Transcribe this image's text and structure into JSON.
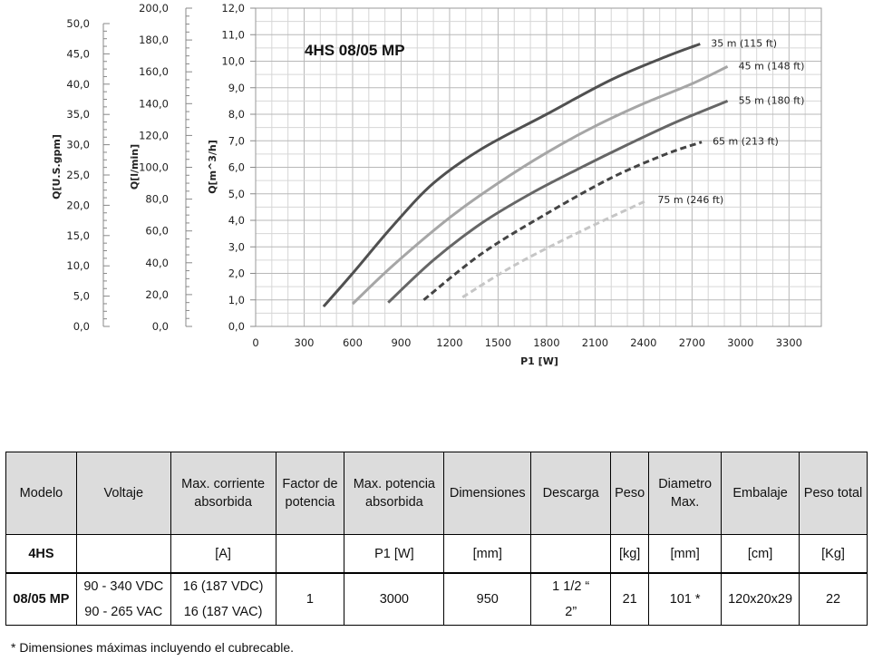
{
  "chart_data": {
    "type": "line",
    "title": "4HS 08/05 MP",
    "xlabel": "P1 [W]",
    "x_ticks": [
      "0",
      "300",
      "600",
      "900",
      "1200",
      "1500",
      "1800",
      "2100",
      "2400",
      "2700",
      "3000",
      "3300"
    ],
    "xlim": [
      0,
      3500
    ],
    "ylabel": "Q[m^3/h]",
    "ylim": [
      0,
      12
    ],
    "y_ticks": [
      "0,0",
      "1,0",
      "2,0",
      "3,0",
      "4,0",
      "5,0",
      "6,0",
      "7,0",
      "8,0",
      "9,0",
      "10,0",
      "11,0",
      "12,0"
    ],
    "secondary_axes": [
      {
        "label": "Q[l/min]",
        "ticks": [
          "0,0",
          "20,0",
          "40,0",
          "60,0",
          "80,0",
          "100,0",
          "120,0",
          "140,0",
          "160,0",
          "180,0",
          "200,0"
        ]
      },
      {
        "label": "Q[U.S.gpm]",
        "ticks": [
          "0,0",
          "5,0",
          "10,0",
          "15,0",
          "20,0",
          "25,0",
          "30,0",
          "35,0",
          "40,0",
          "45,0",
          "50,0"
        ]
      }
    ],
    "grid": true,
    "series": [
      {
        "name": "35 m (115 ft)",
        "color": "#505050",
        "style": "solid",
        "x": [
          420,
          600,
          850,
          1100,
          1400,
          1800,
          2200,
          2550,
          2750
        ],
        "y": [
          0.75,
          2.0,
          3.8,
          5.4,
          6.7,
          8.0,
          9.3,
          10.2,
          10.65
        ]
      },
      {
        "name": "45 m (148 ft)",
        "color": "#a6a6a6",
        "style": "solid",
        "x": [
          600,
          850,
          1200,
          1500,
          1800,
          2100,
          2400,
          2700,
          2920
        ],
        "y": [
          0.85,
          2.3,
          4.1,
          5.4,
          6.55,
          7.55,
          8.4,
          9.15,
          9.8
        ]
      },
      {
        "name": "55 m (180 ft)",
        "color": "#666666",
        "style": "solid",
        "x": [
          820,
          1100,
          1400,
          1700,
          2000,
          2300,
          2600,
          2920
        ],
        "y": [
          0.9,
          2.5,
          3.9,
          5.0,
          5.95,
          6.85,
          7.7,
          8.5
        ]
      },
      {
        "name": "65 m (213 ft)",
        "color": "#444444",
        "style": "dashed",
        "x": [
          1040,
          1400,
          1800,
          2200,
          2540,
          2760
        ],
        "y": [
          1.0,
          2.75,
          4.25,
          5.6,
          6.5,
          6.95
        ]
      },
      {
        "name": "75 m (246 ft)",
        "color": "#c6c6c6",
        "style": "dashed",
        "x": [
          1280,
          1600,
          2000,
          2420
        ],
        "y": [
          1.1,
          2.3,
          3.55,
          4.75
        ]
      }
    ]
  },
  "table": {
    "headers": [
      "Modelo",
      "Voltaje",
      "Max. corriente absorbida",
      "Factor de potencia",
      "Max. potencia absorbida",
      "Dimensiones",
      "Descarga",
      "Peso",
      "Diametro Max.",
      "Embalaje",
      "Peso total"
    ],
    "units": [
      "4HS",
      "",
      "[A]",
      "",
      "P1 [W]",
      "[mm]",
      "",
      "[kg]",
      "[mm]",
      "[cm]",
      "[Kg]"
    ],
    "row": {
      "modelo": "08/05 MP",
      "voltaje_1": "90 - 340 VDC",
      "voltaje_2": "90 - 265 VAC",
      "corriente_1": "16 (187 VDC)",
      "corriente_2": "16 (187 VAC)",
      "factor": "1",
      "potencia": "3000",
      "dimensiones": "950",
      "descarga_1": "1 1/2 “",
      "descarga_2": "2”",
      "peso": "21",
      "diametro": "101 *",
      "embalaje": "120x20x29",
      "peso_total": "22"
    }
  },
  "footnote": "* Dimensiones máximas incluyendo el cubrecable."
}
